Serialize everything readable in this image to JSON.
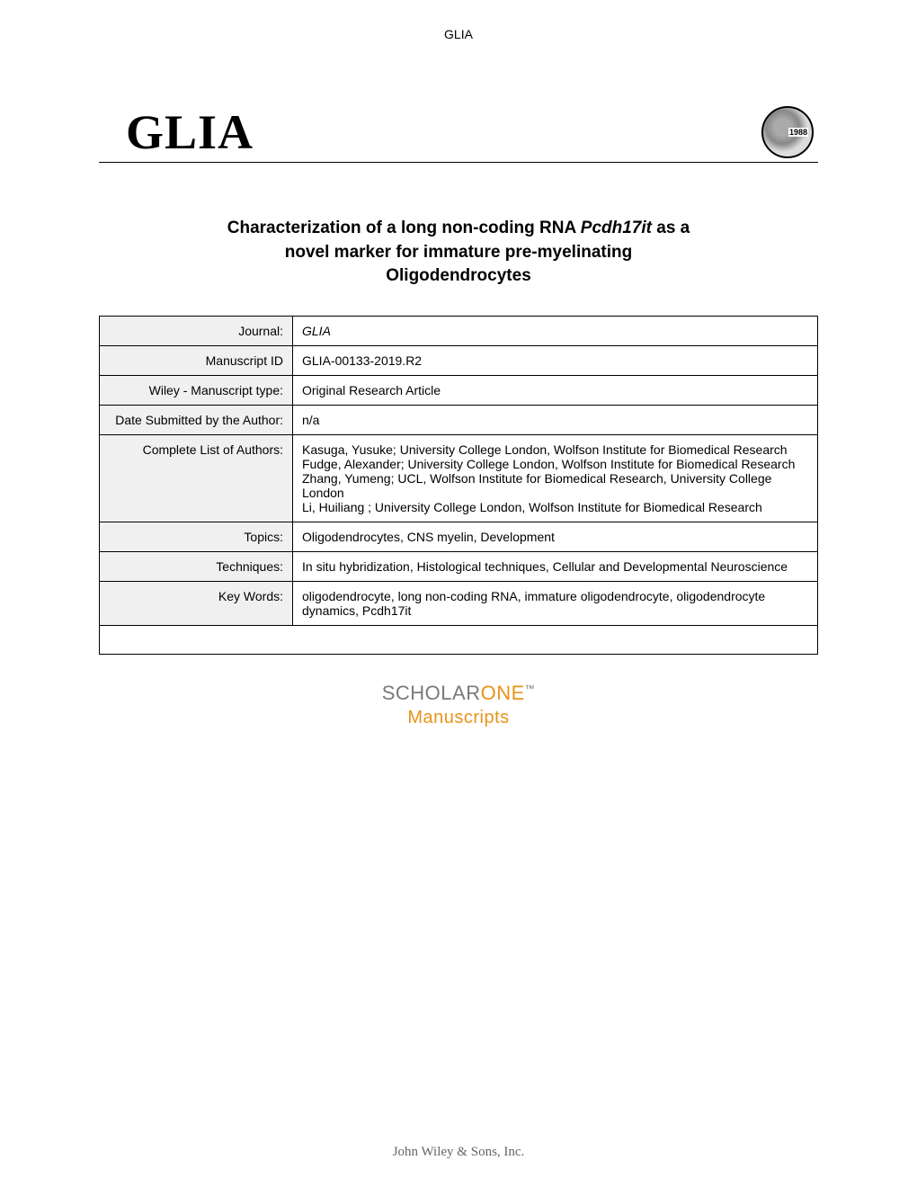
{
  "header": {
    "journal_short": "GLIA"
  },
  "banner": {
    "logo_text": "GLIA",
    "logo_year": "1988"
  },
  "title": {
    "line1_prefix": "Characterization of a long non-coding RNA ",
    "line1_italic": "Pcdh17it",
    "line1_suffix": " as a",
    "line2": "novel marker for immature pre-myelinating",
    "line3": "Oligodendrocytes"
  },
  "table": {
    "rows": [
      {
        "label": "Journal:",
        "value": "GLIA",
        "italic": true
      },
      {
        "label": "Manuscript ID",
        "value": "GLIA-00133-2019.R2"
      },
      {
        "label": "Wiley - Manuscript type:",
        "value": "Original Research Article"
      },
      {
        "label": "Date Submitted by the Author:",
        "value": "n/a"
      },
      {
        "label": "Complete List of Authors:",
        "value": "Kasuga, Yusuke; University College London, Wolfson Institute for Biomedical Research\nFudge, Alexander; University College London, Wolfson Institute for Biomedical Research\nZhang, Yumeng; UCL, Wolfson Institute for Biomedical Research, University College London\nLi, Huiliang ; University College London, Wolfson Institute for Biomedical Research"
      },
      {
        "label": "Topics:",
        "value": "Oligodendrocytes, CNS myelin, Development"
      },
      {
        "label": "Techniques:",
        "value": "In situ hybridization, Histological techniques, Cellular and Developmental Neuroscience"
      },
      {
        "label": "Key Words:",
        "value": "oligodendrocyte, long non-coding RNA, immature oligodendrocyte, oligodendrocyte dynamics, Pcdh17it"
      }
    ]
  },
  "scholarone": {
    "brand_dark": "SCHOLAR",
    "brand_light": "ONE",
    "tm": "™",
    "subtitle": "Manuscripts"
  },
  "footer": {
    "text": "John Wiley & Sons, Inc."
  }
}
